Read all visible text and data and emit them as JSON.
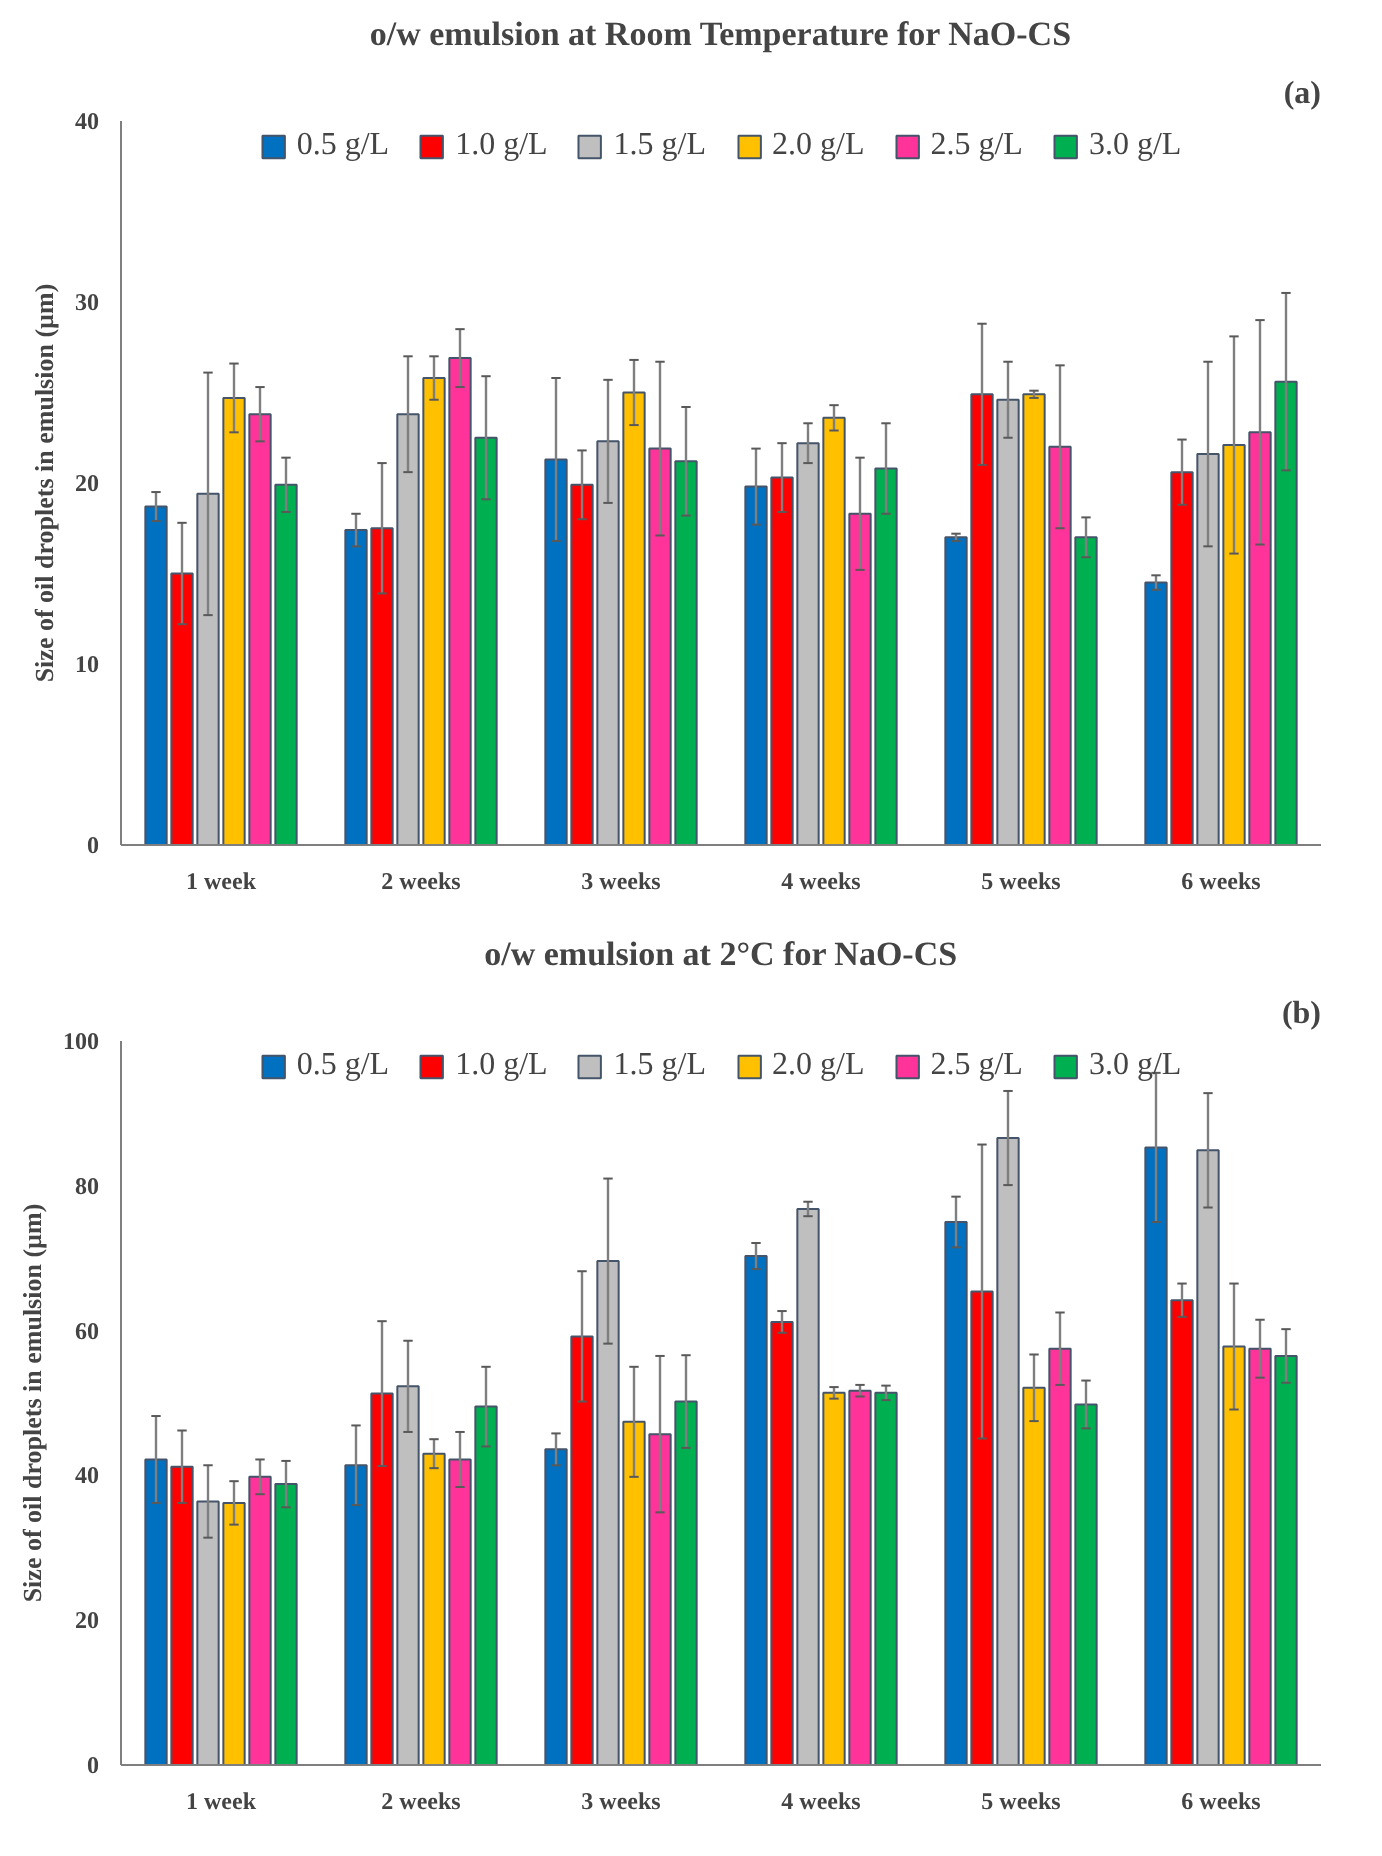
{
  "chart_data": [
    {
      "type": "bar",
      "title": "o/w emulsion at Room Temperature for NaO-CS",
      "ylabel": "Size of oil droplets in emulsion (µm)",
      "annotations": [
        "(a)"
      ],
      "categories": [
        "1 week",
        "2 weeks",
        "3 weeks",
        "4 weeks",
        "5 weeks",
        "6 weeks"
      ],
      "ylim": [
        0,
        40
      ],
      "yticks": [
        0,
        10,
        20,
        30,
        40
      ],
      "grid": false,
      "legend": "top",
      "series": [
        {
          "name": "0.5 g/L",
          "color": "#0070c0",
          "values": [
            18.7,
            17.4,
            21.3,
            19.8,
            17.0,
            14.5
          ],
          "errors": [
            0.8,
            0.9,
            4.5,
            2.1,
            0.2,
            0.4
          ]
        },
        {
          "name": "1.0 g/L",
          "color": "#ff0000",
          "values": [
            15.0,
            17.5,
            19.9,
            20.3,
            24.9,
            20.6
          ],
          "errors": [
            2.8,
            3.6,
            1.9,
            1.9,
            3.9,
            1.8
          ]
        },
        {
          "name": "1.5 g/L",
          "color": "#bfbfbf",
          "values": [
            19.4,
            23.8,
            22.3,
            22.2,
            24.6,
            21.6
          ],
          "errors": [
            6.7,
            3.2,
            3.4,
            1.1,
            2.1,
            5.1
          ]
        },
        {
          "name": "2.0 g/L",
          "color": "#ffc000",
          "values": [
            24.7,
            25.8,
            25.0,
            23.6,
            24.9,
            22.1
          ],
          "errors": [
            1.9,
            1.2,
            1.8,
            0.7,
            0.2,
            6.0
          ]
        },
        {
          "name": "2.5 g/L",
          "color": "#ff3399",
          "values": [
            23.8,
            26.9,
            21.9,
            18.3,
            22.0,
            22.8
          ],
          "errors": [
            1.5,
            1.6,
            4.8,
            3.1,
            4.5,
            6.2
          ]
        },
        {
          "name": "3.0 g/L",
          "color": "#00b050",
          "values": [
            19.9,
            22.5,
            21.2,
            20.8,
            17.0,
            25.6
          ],
          "errors": [
            1.5,
            3.4,
            3.0,
            2.5,
            1.1,
            4.9
          ]
        }
      ]
    },
    {
      "type": "bar",
      "title": "o/w emulsion at 2°C for NaO-CS",
      "ylabel": "Size of oil droplets in emulsion (µm)",
      "annotations": [
        "(b)"
      ],
      "categories": [
        "1 week",
        "2 weeks",
        "3 weeks",
        "4 weeks",
        "5 weeks",
        "6 weeks"
      ],
      "ylim": [
        0,
        100
      ],
      "yticks": [
        0,
        20,
        40,
        60,
        80,
        100
      ],
      "grid": false,
      "legend": "top",
      "series": [
        {
          "name": "0.5 g/L",
          "color": "#0070c0",
          "values": [
            42.2,
            41.4,
            43.6,
            70.3,
            75.0,
            85.3
          ],
          "errors": [
            6.0,
            5.5,
            2.2,
            1.8,
            3.5,
            10.3
          ]
        },
        {
          "name": "1.0 g/L",
          "color": "#ff0000",
          "values": [
            41.2,
            51.3,
            59.2,
            61.2,
            65.4,
            64.2
          ],
          "errors": [
            5.0,
            10.0,
            9.0,
            1.5,
            20.3,
            2.3
          ]
        },
        {
          "name": "1.5 g/L",
          "color": "#bfbfbf",
          "values": [
            36.4,
            52.3,
            69.6,
            76.8,
            86.6,
            84.9
          ],
          "errors": [
            5.0,
            6.3,
            11.4,
            1.0,
            6.5,
            7.9
          ]
        },
        {
          "name": "2.0 g/L",
          "color": "#ffc000",
          "values": [
            36.2,
            43.0,
            47.4,
            51.4,
            52.1,
            57.8
          ],
          "errors": [
            3.0,
            2.0,
            7.6,
            0.8,
            4.6,
            8.7
          ]
        },
        {
          "name": "2.5 g/L",
          "color": "#ff3399",
          "values": [
            39.8,
            42.2,
            45.7,
            51.7,
            57.5,
            57.5
          ],
          "errors": [
            2.4,
            3.8,
            10.8,
            0.8,
            5.0,
            4.0
          ]
        },
        {
          "name": "3.0 g/L",
          "color": "#00b050",
          "values": [
            38.8,
            49.5,
            50.2,
            51.4,
            49.8,
            56.5
          ],
          "errors": [
            3.2,
            5.5,
            6.4,
            1.0,
            3.3,
            3.7
          ]
        }
      ]
    }
  ]
}
